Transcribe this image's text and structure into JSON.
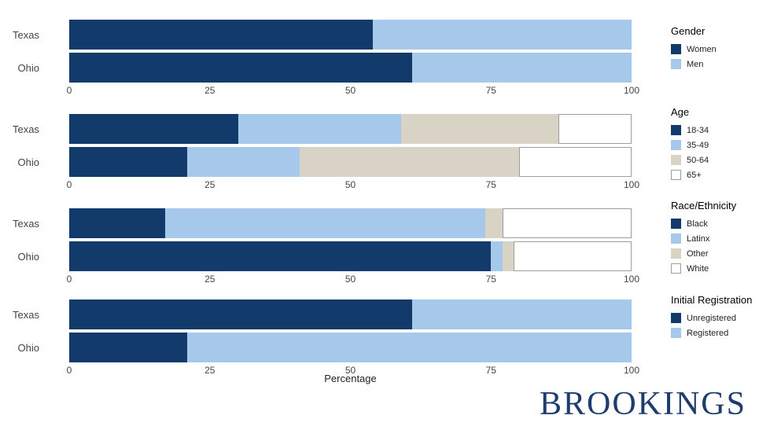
{
  "page": {
    "xlabel": "Percentage",
    "x_ticks": [
      "0",
      "25",
      "50",
      "75",
      "100"
    ],
    "brand": "BROOKINGS"
  },
  "colors": {
    "dark_blue": "#123A6B",
    "light_blue": "#A6C8EA",
    "tan": "#D8D3C4",
    "white": "#FFFFFF",
    "brand_navy": "#1E3C6E"
  },
  "chart_data": [
    {
      "type": "bar",
      "orientation": "horizontal",
      "stacked": true,
      "xlim": [
        0,
        100
      ],
      "legend_title": "Gender",
      "legend_position": "right",
      "categories": [
        "Texas",
        "Ohio"
      ],
      "series": [
        {
          "name": "Women",
          "color": "#123A6B",
          "values": [
            54,
            61
          ]
        },
        {
          "name": "Men",
          "color": "#A6C8EA",
          "values": [
            46,
            39
          ]
        }
      ]
    },
    {
      "type": "bar",
      "orientation": "horizontal",
      "stacked": true,
      "xlim": [
        0,
        100
      ],
      "legend_title": "Age",
      "legend_position": "right",
      "categories": [
        "Texas",
        "Ohio"
      ],
      "series": [
        {
          "name": "18-34",
          "color": "#123A6B",
          "values": [
            30,
            21
          ]
        },
        {
          "name": "35-49",
          "color": "#A6C8EA",
          "values": [
            29,
            20
          ]
        },
        {
          "name": "50-64",
          "color": "#D8D3C4",
          "values": [
            28,
            39
          ]
        },
        {
          "name": "65+",
          "color": "#FFFFFF",
          "values": [
            13,
            20
          ]
        }
      ]
    },
    {
      "type": "bar",
      "orientation": "horizontal",
      "stacked": true,
      "xlim": [
        0,
        100
      ],
      "legend_title": "Race/Ethnicity",
      "legend_position": "right",
      "categories": [
        "Texas",
        "Ohio"
      ],
      "series": [
        {
          "name": "Black",
          "color": "#123A6B",
          "values": [
            17,
            75
          ]
        },
        {
          "name": "Latinx",
          "color": "#A6C8EA",
          "values": [
            57,
            2
          ]
        },
        {
          "name": "Other",
          "color": "#D8D3C4",
          "values": [
            3,
            2
          ]
        },
        {
          "name": "White",
          "color": "#FFFFFF",
          "values": [
            23,
            21
          ]
        }
      ]
    },
    {
      "type": "bar",
      "orientation": "horizontal",
      "stacked": true,
      "xlim": [
        0,
        100
      ],
      "legend_title": "Initial Registration",
      "legend_position": "right",
      "categories": [
        "Texas",
        "Ohio"
      ],
      "series": [
        {
          "name": "Unregistered",
          "color": "#123A6B",
          "values": [
            61,
            21
          ]
        },
        {
          "name": "Registered",
          "color": "#A6C8EA",
          "values": [
            39,
            79
          ]
        }
      ]
    }
  ]
}
